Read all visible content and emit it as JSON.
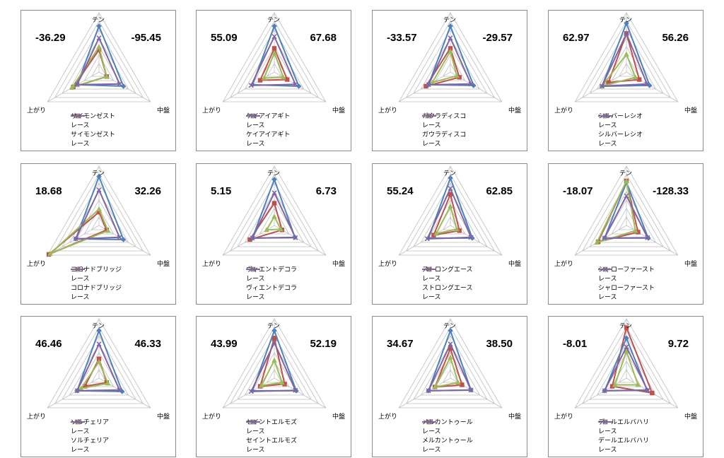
{
  "axis_labels": {
    "top": "テン",
    "left": "上がり",
    "right": "中盤"
  },
  "colors": {
    "red": "#c0504d",
    "blue": "#4f81bd",
    "green": "#9bbb59",
    "purple": "#8064a2",
    "grid": "#bfbfbf"
  },
  "chart_data": [
    {
      "type": "radar",
      "num_left": "-36.29",
      "num_right": "-95.45",
      "axes": [
        "テン",
        "中盤",
        "上がり"
      ],
      "series": [
        {
          "name": "サイモンゼスト",
          "marker": "square",
          "values": [
            0.75,
            0.3,
            1.0
          ]
        },
        {
          "name": "レース",
          "marker": "diamond",
          "values": [
            1.55,
            0.95,
            0.85
          ]
        },
        {
          "name": "サイモンゼスト",
          "marker": "triangle",
          "values": [
            0.85,
            0.3,
            1.05
          ]
        },
        {
          "name": "レース",
          "marker": "x",
          "values": [
            1.15,
            0.8,
            0.85
          ]
        }
      ]
    },
    {
      "type": "radar",
      "num_left": "55.09",
      "num_right": "67.68",
      "axes": [
        "テン",
        "中盤",
        "上がり"
      ],
      "series": [
        {
          "name": "ケイアイアギト",
          "marker": "square",
          "values": [
            0.8,
            0.5,
            0.55
          ]
        },
        {
          "name": "レース",
          "marker": "diamond",
          "values": [
            1.55,
            0.95,
            0.85
          ]
        },
        {
          "name": "ケイアイアギト",
          "marker": "triangle",
          "values": [
            0.65,
            0.35,
            0.4
          ]
        },
        {
          "name": "レース",
          "marker": "x",
          "values": [
            1.2,
            0.82,
            0.9
          ]
        }
      ]
    },
    {
      "type": "radar",
      "num_left": "-33.57",
      "num_right": "-29.57",
      "axes": [
        "テン",
        "中盤",
        "上がり"
      ],
      "series": [
        {
          "name": "ガウラディスコ",
          "marker": "square",
          "values": [
            0.8,
            0.35,
            0.95
          ]
        },
        {
          "name": "レース",
          "marker": "diamond",
          "values": [
            1.55,
            0.9,
            0.85
          ]
        },
        {
          "name": "ガウラディスコ",
          "marker": "triangle",
          "values": [
            0.7,
            0.25,
            0.7
          ]
        },
        {
          "name": "レース",
          "marker": "x",
          "values": [
            1.15,
            0.8,
            0.85
          ]
        }
      ]
    },
    {
      "type": "radar",
      "num_left": "62.97",
      "num_right": "56.26",
      "axes": [
        "テン",
        "中盤",
        "上がり"
      ],
      "series": [
        {
          "name": "シルバーレシオ",
          "marker": "square",
          "values": [
            1.3,
            0.5,
            0.7
          ]
        },
        {
          "name": "レース",
          "marker": "diamond",
          "values": [
            1.65,
            0.9,
            0.95
          ]
        },
        {
          "name": "シルバーレシオ",
          "marker": "triangle",
          "values": [
            0.6,
            0.35,
            0.95
          ]
        },
        {
          "name": "レース",
          "marker": "x",
          "values": [
            1.3,
            0.8,
            0.95
          ]
        }
      ]
    },
    {
      "type": "radar",
      "num_left": "18.68",
      "num_right": "32.26",
      "axes": [
        "テン",
        "中盤",
        "上がり"
      ],
      "series": [
        {
          "name": "コロナドブリッジ",
          "marker": "square",
          "values": [
            0.45,
            0.3,
            1.95
          ]
        },
        {
          "name": "レース",
          "marker": "diamond",
          "values": [
            1.65,
            0.95,
            0.9
          ]
        },
        {
          "name": "コロナドブリッジ",
          "marker": "triangle",
          "values": [
            0.55,
            0.35,
            1.9
          ]
        },
        {
          "name": "レース",
          "marker": "x",
          "values": [
            1.2,
            0.8,
            0.9
          ]
        }
      ]
    },
    {
      "type": "radar",
      "num_left": "5.15",
      "num_right": "6.73",
      "axes": [
        "テン",
        "中盤",
        "上がり"
      ],
      "series": [
        {
          "name": "ヴィエントデコラ",
          "marker": "square",
          "values": [
            0.75,
            0.3,
            0.95
          ]
        },
        {
          "name": "レース",
          "marker": "diamond",
          "values": [
            1.55,
            0.8,
            0.85
          ]
        },
        {
          "name": "ヴィエントデコラ",
          "marker": "triangle",
          "values": [
            0.3,
            0.25,
            0.3
          ]
        },
        {
          "name": "レース",
          "marker": "x",
          "values": [
            1.1,
            0.82,
            0.85
          ]
        }
      ]
    },
    {
      "type": "radar",
      "num_left": "55.24",
      "num_right": "62.85",
      "axes": [
        "テン",
        "中盤",
        "上がり"
      ],
      "series": [
        {
          "name": "ストロングエース",
          "marker": "square",
          "values": [
            1.05,
            0.35,
            0.65
          ]
        },
        {
          "name": "レース",
          "marker": "diamond",
          "values": [
            1.6,
            0.85,
            0.85
          ]
        },
        {
          "name": "ストロングエース",
          "marker": "triangle",
          "values": [
            0.65,
            0.25,
            0.55
          ]
        },
        {
          "name": "レース",
          "marker": "x",
          "values": [
            1.25,
            0.8,
            0.9
          ]
        }
      ]
    },
    {
      "type": "radar",
      "num_left": "-18.07",
      "num_right": "-128.33",
      "axes": [
        "テン",
        "中盤",
        "上がり"
      ],
      "series": [
        {
          "name": "シャローファースト",
          "marker": "square",
          "values": [
            1.5,
            0.45,
            1.1
          ]
        },
        {
          "name": "レース",
          "marker": "diamond",
          "values": [
            1.45,
            0.85,
            0.85
          ]
        },
        {
          "name": "シャローファースト",
          "marker": "triangle",
          "values": [
            1.5,
            0.35,
            1.15
          ]
        },
        {
          "name": "レース",
          "marker": "x",
          "values": [
            1.0,
            0.82,
            0.85
          ]
        }
      ]
    },
    {
      "type": "radar",
      "num_left": "46.46",
      "num_right": "46.33",
      "axes": [
        "テン",
        "中盤",
        "上がり"
      ],
      "series": [
        {
          "name": "ソルチェリア",
          "marker": "square",
          "values": [
            0.65,
            0.3,
            0.55
          ]
        },
        {
          "name": "レース",
          "marker": "diamond",
          "values": [
            1.6,
            0.9,
            0.85
          ]
        },
        {
          "name": "ソルチェリア",
          "marker": "triangle",
          "values": [
            0.55,
            0.35,
            0.7
          ]
        },
        {
          "name": "レース",
          "marker": "x",
          "values": [
            1.15,
            0.8,
            0.85
          ]
        }
      ]
    },
    {
      "type": "radar",
      "num_left": "43.99",
      "num_right": "52.19",
      "axes": [
        "テン",
        "中盤",
        "上がり"
      ],
      "series": [
        {
          "name": "セイントエルモズ",
          "marker": "square",
          "values": [
            1.35,
            0.4,
            0.55
          ]
        },
        {
          "name": "レース",
          "marker": "diamond",
          "values": [
            1.6,
            0.85,
            0.85
          ]
        },
        {
          "name": "セイントエルモズ",
          "marker": "triangle",
          "values": [
            0.6,
            0.3,
            0.5
          ]
        },
        {
          "name": "レース",
          "marker": "x",
          "values": [
            1.2,
            0.82,
            0.9
          ]
        }
      ]
    },
    {
      "type": "radar",
      "num_left": "34.67",
      "num_right": "38.50",
      "axes": [
        "テン",
        "中盤",
        "上がり"
      ],
      "series": [
        {
          "name": "メルカントゥール",
          "marker": "square",
          "values": [
            1.0,
            0.45,
            0.6
          ]
        },
        {
          "name": "レース",
          "marker": "diamond",
          "values": [
            1.6,
            0.8,
            0.85
          ]
        },
        {
          "name": "メルカントゥール",
          "marker": "triangle",
          "values": [
            0.7,
            0.3,
            0.6
          ]
        },
        {
          "name": "レース",
          "marker": "x",
          "values": [
            1.15,
            0.8,
            0.85
          ]
        }
      ]
    },
    {
      "type": "radar",
      "num_left": "-8.01",
      "num_right": "9.72",
      "axes": [
        "テン",
        "中盤",
        "上がり"
      ],
      "series": [
        {
          "name": "デールエルバハリ",
          "marker": "square",
          "values": [
            1.7,
            1.0,
            0.55
          ]
        },
        {
          "name": "レース",
          "marker": "diamond",
          "values": [
            1.35,
            0.8,
            0.85
          ]
        },
        {
          "name": "デールエルバハリ",
          "marker": "triangle",
          "values": [
            0.9,
            0.45,
            0.45
          ]
        },
        {
          "name": "レース",
          "marker": "x",
          "values": [
            1.05,
            0.82,
            0.85
          ]
        }
      ]
    }
  ]
}
